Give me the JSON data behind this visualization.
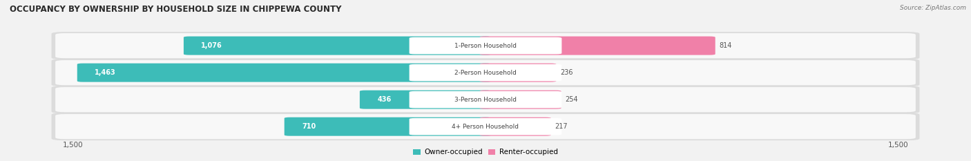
{
  "title": "OCCUPANCY BY OWNERSHIP BY HOUSEHOLD SIZE IN CHIPPEWA COUNTY",
  "source": "Source: ZipAtlas.com",
  "categories": [
    "1-Person Household",
    "2-Person Household",
    "3-Person Household",
    "4+ Person Household"
  ],
  "owner_values": [
    1076,
    1463,
    436,
    710
  ],
  "renter_values": [
    814,
    236,
    254,
    217
  ],
  "owner_color": "#3dbcb8",
  "renter_color": "#f080a8",
  "axis_max": 1500,
  "bg_color": "#f2f2f2",
  "row_bg_even": "#ebebeb",
  "row_bg_odd": "#f5f5f5",
  "pill_bg": "#e0e0e0",
  "legend_owner": "Owner-occupied",
  "legend_renter": "Renter-occupied",
  "figsize": [
    14.06,
    2.33
  ],
  "dpi": 100
}
